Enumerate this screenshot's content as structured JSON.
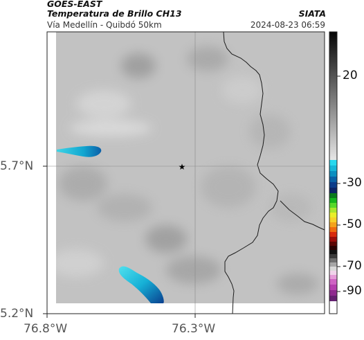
{
  "header": {
    "satellite": "GOES-EAST",
    "product": "Temperatura de Brillo CH13",
    "organization": "SIATA",
    "region": "Vía Medellín - Quibdó 50km",
    "datetime": "2024-08-23 06:59"
  },
  "map": {
    "lat_labels": [
      "5.7°N",
      "5.2°N"
    ],
    "lon_labels": [
      "76.8°W",
      "76.3°W"
    ],
    "marker_icon": "star-icon",
    "background_color": "#c2c2c2"
  },
  "colorbar": {
    "tick_labels": [
      "20",
      "-30",
      "-50",
      "-70",
      "-90"
    ]
  }
}
